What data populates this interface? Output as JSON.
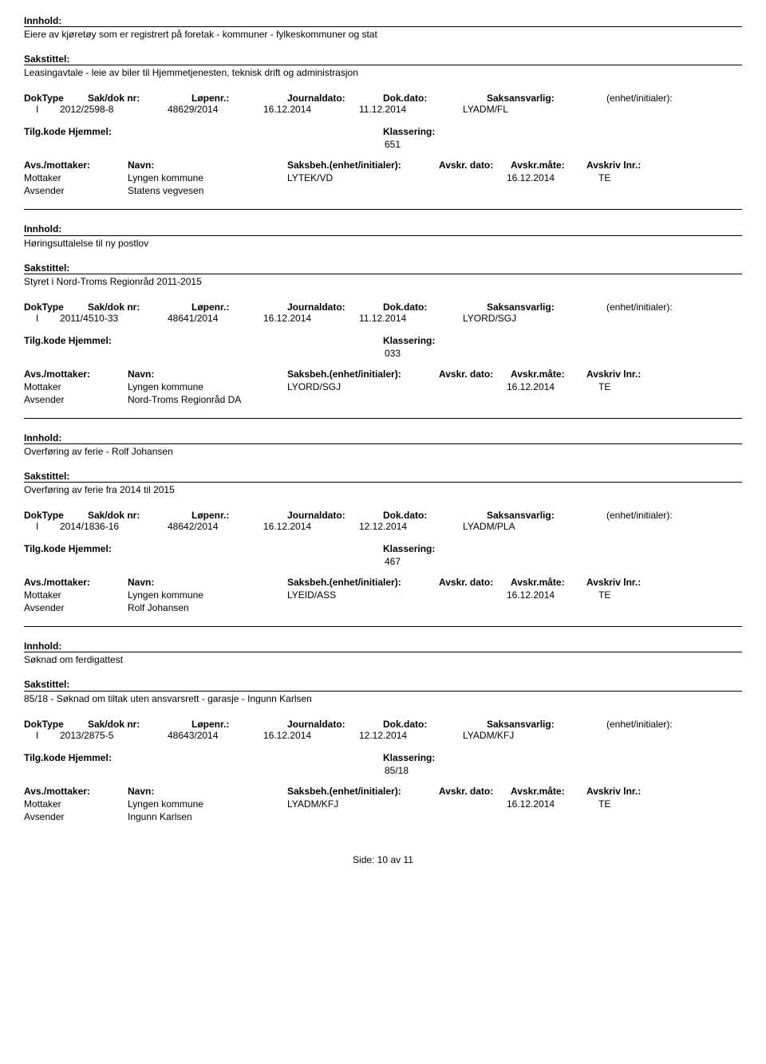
{
  "labels": {
    "innhold": "Innhold:",
    "sakstittel": "Sakstittel:",
    "doktype": "DokType",
    "sakdok": "Sak/dok nr:",
    "lopenr": "Løpenr.:",
    "journaldato": "Journaldato:",
    "dokdato": "Dok.dato:",
    "saksansvarlig": "Saksansvarlig:",
    "enhet": "(enhet/initialer):",
    "tilgkode": "Tilg.kode",
    "hjemmel": "Hjemmel:",
    "klassering": "Klassering:",
    "avsmottaker": "Avs./mottaker:",
    "navn": "Navn:",
    "saksbeh": "Saksbeh.(enhet/initialer):",
    "avskrdato": "Avskr. dato:",
    "avskrmate": "Avskr.måte:",
    "avskrlnr": "Avskriv lnr.:",
    "mottaker": "Mottaker",
    "avsender": "Avsender",
    "side": "Side:",
    "av": "av"
  },
  "records": [
    {
      "innhold": "Eiere av kjøretøy som er registrert på foretak - kommuner - fylkeskommuner og stat",
      "sakstittel": "Leasingavtale - leie av biler til Hjemmetjenesten, teknisk drift og administrasjon",
      "doktype": "I",
      "sakdok": "2012/2598-8",
      "lopenr": "48629/2014",
      "journaldato": "16.12.2014",
      "dokdato": "11.12.2014",
      "saksansvarlig": "LYADM/FL",
      "klassering": "651",
      "parties": [
        {
          "role": "Mottaker",
          "name": "Lyngen kommune",
          "saksbeh": "LYTEK/VD",
          "date": "16.12.2014",
          "code": "TE"
        },
        {
          "role": "Avsender",
          "name": "Statens vegvesen",
          "saksbeh": "",
          "date": "",
          "code": ""
        }
      ]
    },
    {
      "innhold": "Høringsuttalelse til ny postlov",
      "sakstittel": "Styret i Nord-Troms Regionråd 2011-2015",
      "doktype": "I",
      "sakdok": "2011/4510-33",
      "lopenr": "48641/2014",
      "journaldato": "16.12.2014",
      "dokdato": "11.12.2014",
      "saksansvarlig": "LYORD/SGJ",
      "klassering": "033",
      "parties": [
        {
          "role": "Mottaker",
          "name": "Lyngen kommune",
          "saksbeh": "LYORD/SGJ",
          "date": "16.12.2014",
          "code": "TE"
        },
        {
          "role": "Avsender",
          "name": "Nord-Troms Regionråd DA",
          "saksbeh": "",
          "date": "",
          "code": ""
        }
      ]
    },
    {
      "innhold": "Overføring av ferie - Rolf Johansen",
      "sakstittel": "Overføring av ferie fra 2014 til 2015",
      "doktype": "I",
      "sakdok": "2014/1836-16",
      "lopenr": "48642/2014",
      "journaldato": "16.12.2014",
      "dokdato": "12.12.2014",
      "saksansvarlig": "LYADM/PLA",
      "klassering": "467",
      "parties": [
        {
          "role": "Mottaker",
          "name": "Lyngen kommune",
          "saksbeh": "LYEID/ASS",
          "date": "16.12.2014",
          "code": "TE"
        },
        {
          "role": "Avsender",
          "name": "Rolf Johansen",
          "saksbeh": "",
          "date": "",
          "code": ""
        }
      ]
    },
    {
      "innhold": "Søknad om ferdigattest",
      "sakstittel": "85/18 - Søknad om tiltak uten ansvarsrett - garasje - Ingunn Karlsen",
      "doktype": "I",
      "sakdok": "2013/2875-5",
      "lopenr": "48643/2014",
      "journaldato": "16.12.2014",
      "dokdato": "12.12.2014",
      "saksansvarlig": "LYADM/KFJ",
      "klassering": "85/18",
      "parties": [
        {
          "role": "Mottaker",
          "name": "Lyngen kommune",
          "saksbeh": "LYADM/KFJ",
          "date": "16.12.2014",
          "code": "TE"
        },
        {
          "role": "Avsender",
          "name": "Ingunn Karlsen",
          "saksbeh": "",
          "date": "",
          "code": ""
        }
      ]
    }
  ],
  "footer": {
    "page": "10",
    "total": "11"
  }
}
